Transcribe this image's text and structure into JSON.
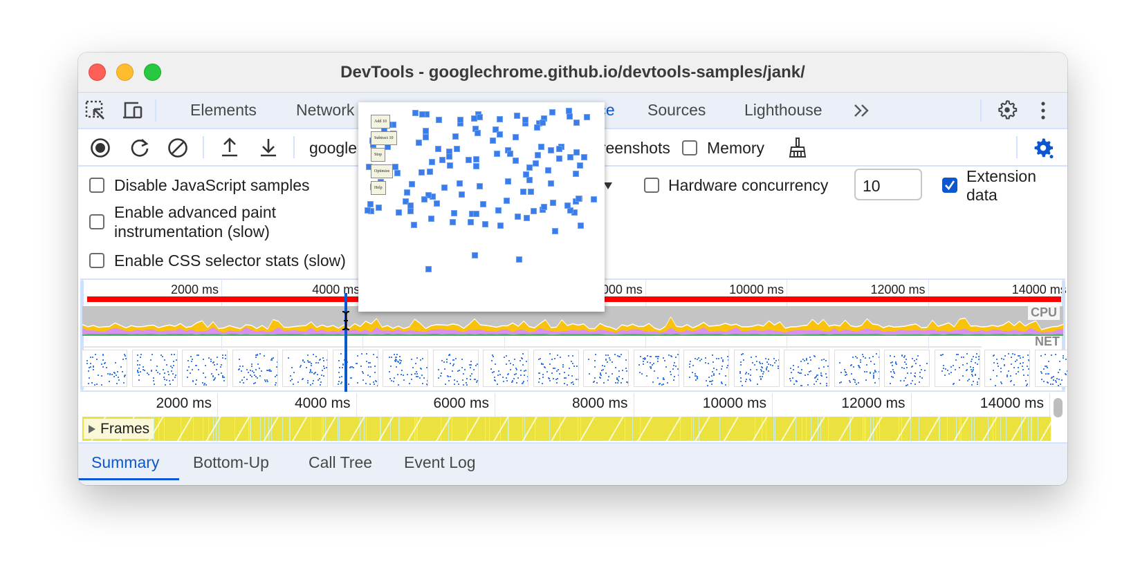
{
  "window": {
    "title": "DevTools - googlechrome.github.io/devtools-samples/jank/"
  },
  "tabs": [
    {
      "label": "Elements"
    },
    {
      "label": "Network"
    },
    {
      "label": "Performance"
    },
    {
      "label": "Sources"
    },
    {
      "label": "Lighthouse"
    }
  ],
  "tabbar": {
    "more_icon": "chevron-double-right-icon",
    "settings_icon": "gear-icon",
    "menu_icon": "kebab-icon"
  },
  "toolbar": {
    "page_select": "google",
    "screenshots_label": "Screenshots",
    "screenshots_checked": true,
    "memory_label": "Memory",
    "memory_checked": false
  },
  "settings": {
    "disable_js_samples": {
      "label": "Disable JavaScript samples",
      "checked": false
    },
    "advanced_paint": {
      "label_line1": "Enable advanced paint",
      "label_line2": "instrumentation (slow)",
      "checked": false
    },
    "css_selector_stats": {
      "label": "Enable CSS selector stats (slow)",
      "checked": false
    },
    "hardware_concurrency": {
      "label": "Hardware concurrency",
      "checked": false,
      "value": "10"
    },
    "extension_data": {
      "label_line1": "Extension",
      "label_line2": "data",
      "checked": true
    }
  },
  "overview": {
    "ticks": [
      "2000 ms",
      "4000 ms",
      "6000 ms",
      "8000 ms",
      "10000 ms",
      "12000 ms",
      "14000 ms"
    ],
    "cpu_label": "CPU",
    "net_label": "NET",
    "colors": {
      "long_tasks": "#ff0000",
      "scripting": "#f9c20c",
      "rendering": "#d88ff0",
      "painting": "#3cba54",
      "idle": "#c4c4c4",
      "cursor": "#0b57d0"
    }
  },
  "screenshot_popup": {
    "buttons": [
      "Add 10",
      "Subtract 10",
      "Stop",
      "Optimize",
      "Help"
    ]
  },
  "ruler": {
    "ticks": [
      "2000 ms",
      "4000 ms",
      "6000 ms",
      "8000 ms",
      "10000 ms",
      "12000 ms",
      "14000 ms"
    ]
  },
  "frames": {
    "label": "Frames",
    "color": "#ece23f"
  },
  "bottom_tabs": [
    {
      "label": "Summary",
      "active": true
    },
    {
      "label": "Bottom-Up"
    },
    {
      "label": "Call Tree"
    },
    {
      "label": "Event Log"
    }
  ],
  "accent": "#0b57d0"
}
